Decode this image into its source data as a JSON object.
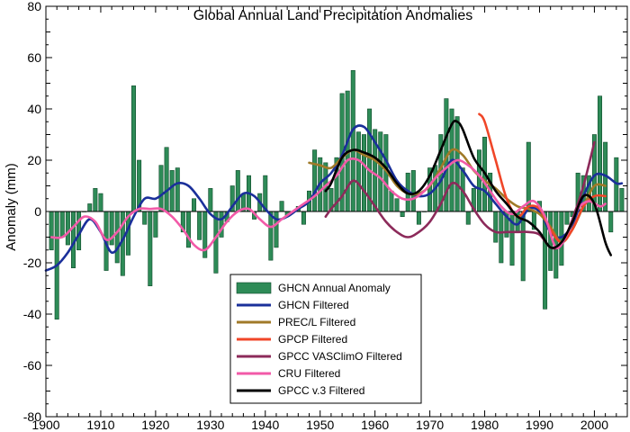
{
  "chart_data": {
    "type": "bar+line",
    "title": "Global Annual Land Precipitation Anomalies",
    "xlabel": "",
    "ylabel": "Anomaly (mm)",
    "xlim": [
      1900,
      2006
    ],
    "ylim": [
      -80,
      80
    ],
    "x_ticks": [
      1900,
      1910,
      1920,
      1930,
      1940,
      1950,
      1960,
      1970,
      1980,
      1990,
      2000
    ],
    "y_ticks": [
      -80,
      -60,
      -40,
      -20,
      0,
      20,
      40,
      60,
      80
    ],
    "grid": false,
    "legend_position": "bottom-center",
    "bars": {
      "name": "GHCN Annual Anomaly",
      "color": "#2e8b57",
      "x": [
        1901,
        1902,
        1903,
        1904,
        1905,
        1906,
        1907,
        1908,
        1909,
        1910,
        1911,
        1912,
        1913,
        1914,
        1915,
        1916,
        1917,
        1918,
        1919,
        1920,
        1921,
        1922,
        1923,
        1924,
        1925,
        1926,
        1927,
        1928,
        1929,
        1930,
        1931,
        1932,
        1933,
        1934,
        1935,
        1936,
        1937,
        1938,
        1939,
        1940,
        1941,
        1942,
        1943,
        1944,
        1945,
        1946,
        1947,
        1948,
        1949,
        1950,
        1951,
        1952,
        1953,
        1954,
        1955,
        1956,
        1957,
        1958,
        1959,
        1960,
        1961,
        1962,
        1963,
        1964,
        1965,
        1966,
        1967,
        1968,
        1969,
        1970,
        1971,
        1972,
        1973,
        1974,
        1975,
        1976,
        1977,
        1978,
        1979,
        1980,
        1981,
        1982,
        1983,
        1984,
        1985,
        1986,
        1987,
        1988,
        1989,
        1990,
        1991,
        1992,
        1993,
        1994,
        1995,
        1996,
        1997,
        1998,
        1999,
        2000,
        2001,
        2002,
        2003,
        2004,
        2005
      ],
      "values": [
        -15,
        -42,
        -10,
        -13,
        -22,
        -15,
        0,
        3,
        9,
        7,
        -23,
        -13,
        -20,
        -25,
        -17,
        49,
        20,
        -5,
        -29,
        -10,
        18,
        25,
        16,
        17,
        -8,
        -14,
        5,
        -11,
        -18,
        9,
        -24,
        -10,
        -4,
        10,
        16,
        7,
        14,
        -3,
        7,
        14,
        -19,
        -14,
        4,
        -2,
        0,
        2,
        -5,
        8,
        24,
        21,
        19,
        9,
        21,
        46,
        47,
        55,
        31,
        30,
        40,
        32,
        31,
        30,
        8,
        5,
        -2,
        15,
        16,
        -5,
        0,
        17,
        18,
        30,
        44,
        40,
        37,
        17,
        -5,
        9,
        24,
        29,
        15,
        -12,
        -20,
        -10,
        -21,
        -8,
        -27,
        27,
        -7,
        4,
        -38,
        -23,
        -26,
        -21,
        -5,
        -2,
        15,
        14,
        14,
        30,
        45,
        27,
        -8,
        21,
        9
      ]
    },
    "series": [
      {
        "name": "GHCN Filtered",
        "color": "#1a2f9a",
        "x": [
          1900,
          1902,
          1904,
          1906,
          1908,
          1910,
          1912,
          1914,
          1916,
          1918,
          1920,
          1922,
          1924,
          1926,
          1928,
          1930,
          1932,
          1934,
          1936,
          1938,
          1940,
          1942,
          1944,
          1946,
          1948,
          1950,
          1952,
          1954,
          1956,
          1958,
          1960,
          1962,
          1964,
          1966,
          1968,
          1970,
          1972,
          1974,
          1976,
          1978,
          1980,
          1982,
          1984,
          1986,
          1988,
          1990,
          1992,
          1994,
          1996,
          1998,
          2000,
          2002,
          2004,
          2005
        ],
        "values": [
          -23,
          -21,
          -16,
          -9,
          -3,
          -8,
          -16,
          -11,
          -2,
          5,
          5,
          8,
          11,
          10,
          5,
          -1,
          -3,
          2,
          7,
          6,
          1,
          -3,
          -2,
          1,
          4,
          11,
          15,
          22,
          32,
          33,
          27,
          20,
          12,
          8,
          6,
          7,
          12,
          20,
          16,
          10,
          8,
          3,
          -2,
          -5,
          1,
          0,
          -8,
          -10,
          -5,
          6,
          14,
          14,
          11,
          11
        ]
      },
      {
        "name": "PREC/L Filtered",
        "color": "#a07a28",
        "x": [
          1948,
          1950,
          1952,
          1954,
          1956,
          1958,
          1960,
          1962,
          1964,
          1966,
          1968,
          1970,
          1972,
          1974,
          1976,
          1978,
          1980,
          1982,
          1984,
          1986,
          1988,
          1990,
          1992,
          1994,
          1996,
          1998,
          2000,
          2002
        ],
        "values": [
          19,
          18,
          17,
          21,
          24,
          22,
          20,
          16,
          10,
          7,
          7,
          10,
          17,
          24,
          22,
          16,
          12,
          9,
          5,
          2,
          1,
          -1,
          -6,
          -12,
          -7,
          2,
          10,
          10
        ]
      },
      {
        "name": "GPCP Filtered",
        "color": "#f04628",
        "x": [
          1979,
          1980,
          1982,
          1984,
          1986,
          1988,
          1990,
          1992,
          1994,
          1996,
          1998,
          2000,
          2002
        ],
        "values": [
          38,
          35,
          20,
          5,
          -2,
          2,
          1,
          -7,
          -12,
          -7,
          2,
          6,
          6
        ]
      },
      {
        "name": "GPCC VASClimO Filtered",
        "color": "#8c2a5a",
        "x": [
          1951,
          1952,
          1954,
          1956,
          1958,
          1960,
          1962,
          1964,
          1966,
          1968,
          1970,
          1972,
          1974,
          1976,
          1978,
          1980,
          1982,
          1984,
          1986,
          1988,
          1990,
          1992,
          1994,
          1996,
          1998,
          2000
        ],
        "values": [
          -2,
          1,
          6,
          12,
          8,
          2,
          -4,
          -8,
          -10,
          -8,
          -4,
          3,
          11,
          8,
          1,
          -5,
          -8,
          -8,
          -8,
          -8,
          -9,
          -14,
          -13,
          -3,
          10,
          27
        ]
      },
      {
        "name": "CRU Filtered",
        "color": "#f25aa8",
        "x": [
          1901,
          1903,
          1905,
          1907,
          1909,
          1911,
          1913,
          1915,
          1917,
          1919,
          1921,
          1923,
          1925,
          1927,
          1929,
          1931,
          1933,
          1935,
          1937,
          1939,
          1941,
          1943,
          1945,
          1947,
          1949,
          1951,
          1953,
          1955,
          1957,
          1959,
          1961,
          1963,
          1965,
          1967,
          1969,
          1971,
          1973,
          1975,
          1977,
          1979,
          1981,
          1983,
          1985,
          1987,
          1989,
          1991,
          1993,
          1995,
          1997,
          1999,
          2001,
          2002
        ],
        "values": [
          -10,
          -10,
          -6,
          -2,
          -4,
          -11,
          -8,
          -2,
          1,
          1,
          1,
          -2,
          -7,
          -13,
          -15,
          -10,
          -4,
          0,
          1,
          -3,
          -6,
          -3,
          0,
          3,
          6,
          10,
          14,
          20,
          20,
          16,
          13,
          8,
          5,
          5,
          8,
          13,
          17,
          20,
          18,
          14,
          8,
          2,
          -1,
          2,
          4,
          -2,
          -14,
          -9,
          1,
          4,
          2,
          3
        ]
      },
      {
        "name": "GPCC v.3 Filtered",
        "color": "#000000",
        "x": [
          1951,
          1952,
          1954,
          1956,
          1958,
          1960,
          1962,
          1964,
          1966,
          1968,
          1970,
          1972,
          1974,
          1975,
          1976,
          1978,
          1980,
          1982,
          1984,
          1986,
          1988,
          1990,
          1992,
          1994,
          1996,
          1998,
          2000,
          2002,
          2003
        ],
        "values": [
          8,
          11,
          21,
          24,
          23,
          21,
          17,
          11,
          7,
          8,
          14,
          24,
          34,
          35,
          32,
          21,
          15,
          8,
          3,
          -2,
          -4,
          -8,
          -14,
          -12,
          -4,
          6,
          3,
          -12,
          -17
        ]
      }
    ]
  }
}
